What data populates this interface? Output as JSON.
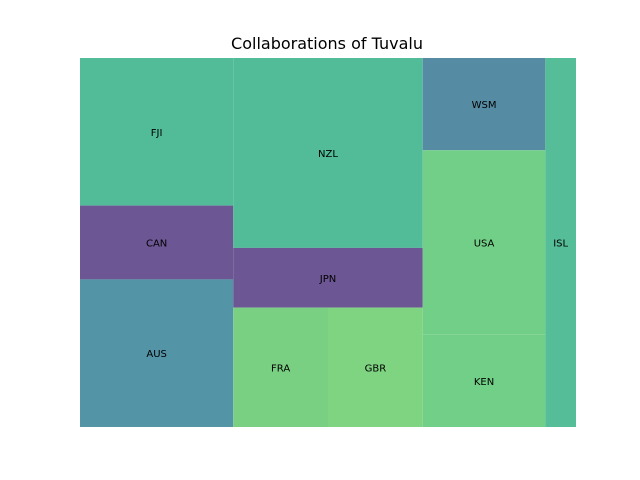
{
  "chart_data": {
    "type": "treemap",
    "title": "Collaborations of Tuvalu",
    "xlabel": "",
    "ylabel": "",
    "grid": false,
    "items": [
      {
        "label": "FJI",
        "value": 22,
        "color": "#52bb98"
      },
      {
        "label": "CAN",
        "value": 11,
        "color": "#6c5694"
      },
      {
        "label": "AUS",
        "value": 22,
        "color": "#5394a6"
      },
      {
        "label": "NZL",
        "value": 35,
        "color": "#52bb98"
      },
      {
        "label": "JPN",
        "value": 11,
        "color": "#6c5694"
      },
      {
        "label": "FRA",
        "value": 11,
        "color": "#7ad082"
      },
      {
        "label": "GBR",
        "value": 11,
        "color": "#7fd482"
      },
      {
        "label": "WSM",
        "value": 11,
        "color": "#568ca3"
      },
      {
        "label": "USA",
        "value": 22,
        "color": "#72cf87"
      },
      {
        "label": "KEN",
        "value": 11,
        "color": "#72cf87"
      },
      {
        "label": "ISL",
        "value": 11,
        "color": "#55be98"
      }
    ]
  }
}
